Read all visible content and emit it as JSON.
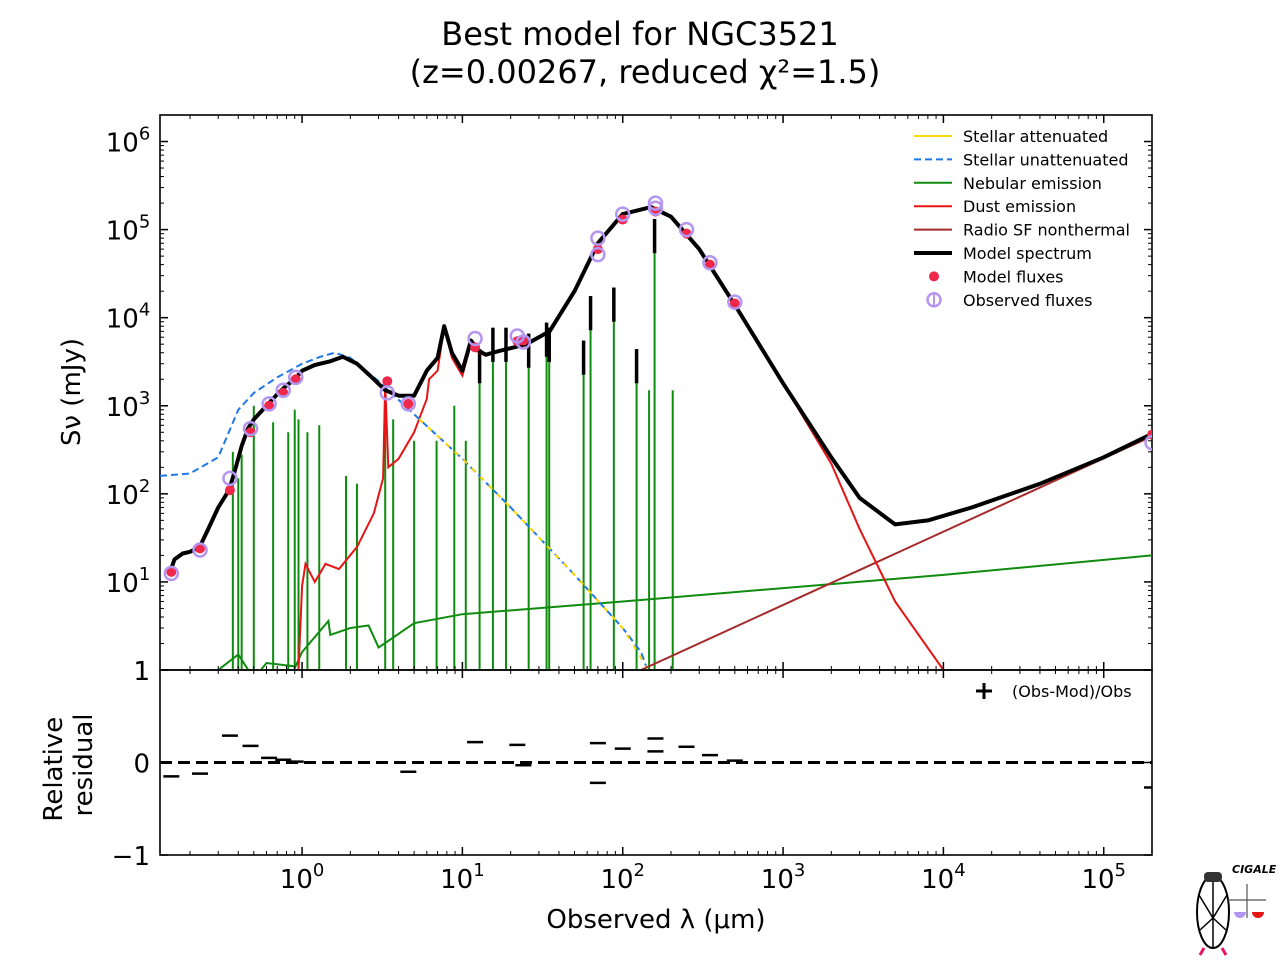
{
  "colors": {
    "stellar_attenuated": "#ffd700",
    "stellar_unattenuated": "#1e78e6",
    "nebular": "#0f8c0f",
    "dust": "#e61414",
    "radio": "#a52a2a",
    "model": "#000000",
    "model_fluxes": "#f0284b",
    "observed_fluxes": "#b496f0"
  },
  "logo": {
    "text": "CIGALE",
    "icon": "cigale-cicada-logo-icon"
  },
  "chart_data": [
    {
      "type": "line",
      "title": "Best model for NGC3521",
      "subtitle": "(z=0.00267, reduced χ²=1.5)",
      "xlabel": "Observed λ (μm)",
      "ylabel": "Sν (mJy)",
      "xscale": "log",
      "yscale": "log",
      "xlim": [
        0.13,
        200000
      ],
      "ylim": [
        1,
        2000000
      ],
      "yticks": [
        {
          "value": 1,
          "label": "1"
        },
        {
          "value": 10,
          "label": "10",
          "exp": "1"
        },
        {
          "value": 100,
          "label": "10",
          "exp": "2"
        },
        {
          "value": 1000,
          "label": "10",
          "exp": "3"
        },
        {
          "value": 10000,
          "label": "10",
          "exp": "4"
        },
        {
          "value": 100000,
          "label": "10",
          "exp": "5"
        },
        {
          "value": 1000000,
          "label": "10",
          "exp": "6"
        }
      ],
      "legend": {
        "position": "top-right",
        "entries": [
          {
            "label": "Stellar attenuated",
            "key": "stellar_attenuated",
            "style": "line"
          },
          {
            "label": "Stellar unattenuated",
            "key": "stellar_unattenuated",
            "style": "dashed"
          },
          {
            "label": "Nebular emission",
            "key": "nebular",
            "style": "line"
          },
          {
            "label": "Dust emission",
            "key": "dust",
            "style": "line"
          },
          {
            "label": "Radio SF nonthermal",
            "key": "radio",
            "style": "line"
          },
          {
            "label": "Model spectrum",
            "key": "model",
            "style": "thick"
          },
          {
            "label": "Model fluxes",
            "key": "model_fluxes",
            "style": "dot"
          },
          {
            "label": "Observed fluxes",
            "key": "observed_fluxes",
            "style": "circle"
          }
        ]
      },
      "series": [
        {
          "name": "Model spectrum",
          "key": "model",
          "points": [
            [
              0.15,
              13
            ],
            [
              0.16,
              18
            ],
            [
              0.18,
              21
            ],
            [
              0.2,
              22
            ],
            [
              0.23,
              25
            ],
            [
              0.26,
              40
            ],
            [
              0.3,
              70
            ],
            [
              0.35,
              110
            ],
            [
              0.38,
              180
            ],
            [
              0.42,
              350
            ],
            [
              0.46,
              550
            ],
            [
              0.5,
              700
            ],
            [
              0.6,
              1000
            ],
            [
              0.7,
              1350
            ],
            [
              0.8,
              1700
            ],
            [
              0.9,
              2000
            ],
            [
              1.0,
              2500
            ],
            [
              1.2,
              2900
            ],
            [
              1.5,
              3200
            ],
            [
              1.8,
              3600
            ],
            [
              2.2,
              3000
            ],
            [
              2.8,
              2000
            ],
            [
              3.3,
              1500
            ],
            [
              4.0,
              1300
            ],
            [
              5.0,
              1300
            ],
            [
              6.0,
              2500
            ],
            [
              7.0,
              3500
            ],
            [
              7.7,
              8000
            ],
            [
              8.6,
              4000
            ],
            [
              10,
              2500
            ],
            [
              11.3,
              5500
            ],
            [
              12.7,
              4200
            ],
            [
              14,
              3800
            ],
            [
              17,
              4200
            ],
            [
              20,
              4500
            ],
            [
              25,
              5000
            ],
            [
              35,
              7000
            ],
            [
              50,
              20000
            ],
            [
              70,
              70000
            ],
            [
              100,
              150000
            ],
            [
              150,
              180000
            ],
            [
              200,
              140000
            ],
            [
              300,
              60000
            ],
            [
              500,
              14000
            ],
            [
              1000,
              1800
            ],
            [
              2000,
              260
            ],
            [
              3000,
              90
            ],
            [
              5000,
              45
            ],
            [
              8000,
              50
            ],
            [
              15000,
              70
            ],
            [
              40000,
              130
            ],
            [
              100000,
              260
            ],
            [
              200000,
              480
            ]
          ]
        },
        {
          "name": "Stellar unattenuated",
          "key": "stellar_unattenuated",
          "points": [
            [
              0.13,
              160
            ],
            [
              0.2,
              170
            ],
            [
              0.3,
              260
            ],
            [
              0.4,
              900
            ],
            [
              0.5,
              1400
            ],
            [
              0.7,
              2100
            ],
            [
              1.0,
              3000
            ],
            [
              1.3,
              3600
            ],
            [
              1.6,
              4000
            ],
            [
              2.0,
              3500
            ],
            [
              3.0,
              1900
            ],
            [
              5.0,
              800
            ],
            [
              10,
              250
            ],
            [
              20,
              70
            ],
            [
              50,
              12
            ],
            [
              100,
              3
            ],
            [
              130,
              1.6
            ],
            [
              140,
              1.1
            ]
          ]
        },
        {
          "name": "Stellar attenuated",
          "key": "stellar_attenuated",
          "points": [
            [
              5,
              800
            ],
            [
              10,
              250
            ],
            [
              20,
              70
            ],
            [
              50,
              12
            ],
            [
              100,
              3
            ],
            [
              140,
              1.1
            ]
          ]
        },
        {
          "name": "Dust emission",
          "key": "dust",
          "points": [
            [
              0.95,
              1
            ],
            [
              1.0,
              9
            ],
            [
              1.05,
              16
            ],
            [
              1.2,
              10
            ],
            [
              1.4,
              16
            ],
            [
              1.7,
              14
            ],
            [
              2.2,
              25
            ],
            [
              2.8,
              60
            ],
            [
              3.2,
              150
            ],
            [
              3.3,
              1800
            ],
            [
              3.45,
              200
            ],
            [
              4.0,
              250
            ],
            [
              5.0,
              500
            ],
            [
              6.0,
              1200
            ],
            [
              6.2,
              2000
            ],
            [
              7.0,
              2500
            ],
            [
              7.7,
              8000
            ],
            [
              8.6,
              3500
            ],
            [
              10,
              2200
            ],
            [
              11.3,
              5000
            ],
            [
              12.7,
              4000
            ],
            [
              14,
              3700
            ],
            [
              17,
              4200
            ],
            [
              20,
              4500
            ],
            [
              25,
              5000
            ],
            [
              35,
              7000
            ],
            [
              50,
              20000
            ],
            [
              70,
              70000
            ],
            [
              100,
              150000
            ],
            [
              150,
              180000
            ],
            [
              200,
              140000
            ],
            [
              300,
              60000
            ],
            [
              500,
              14000
            ],
            [
              1000,
              1800
            ],
            [
              2000,
              220
            ],
            [
              3000,
              40
            ],
            [
              5000,
              6
            ],
            [
              10000,
              1
            ]
          ]
        },
        {
          "name": "Radio SF nonthermal",
          "key": "radio",
          "points": [
            [
              130,
              1
            ],
            [
              200000,
              450
            ]
          ]
        },
        {
          "name": "Nebular emission",
          "key": "nebular",
          "points": [
            [
              0.3,
              1
            ],
            [
              0.4,
              1.5
            ],
            [
              0.5,
              0.8
            ],
            [
              0.6,
              1.2
            ],
            [
              0.91,
              1.1
            ],
            [
              1.0,
              1.6
            ],
            [
              1.46,
              3.6
            ],
            [
              1.5,
              2.5
            ],
            [
              2.0,
              3.0
            ],
            [
              2.6,
              3.2
            ],
            [
              3.0,
              1.8
            ],
            [
              5.0,
              3.4
            ],
            [
              10,
              4.3
            ],
            [
              100,
              6
            ],
            [
              1000,
              8.5
            ],
            [
              10000,
              12
            ],
            [
              200000,
              20
            ]
          ]
        }
      ],
      "nebular_lines": [
        [
          0.37,
          300
        ],
        [
          0.4,
          150
        ],
        [
          0.42,
          280
        ],
        [
          0.5,
          1000
        ],
        [
          0.66,
          650
        ],
        [
          0.82,
          500
        ],
        [
          0.9,
          900
        ],
        [
          0.95,
          700
        ],
        [
          1.08,
          500
        ],
        [
          1.28,
          600
        ],
        [
          1.88,
          160
        ],
        [
          2.2,
          130
        ],
        [
          3.3,
          1000
        ],
        [
          3.7,
          700
        ],
        [
          5.0,
          400
        ],
        [
          6.9,
          400
        ],
        [
          8.9,
          1000
        ],
        [
          10.5,
          400
        ],
        [
          12.8,
          2000
        ],
        [
          15.5,
          3500
        ],
        [
          18.7,
          3500
        ],
        [
          25.9,
          3000
        ],
        [
          33.5,
          4000
        ],
        [
          34.8,
          3500
        ],
        [
          57,
          2500
        ],
        [
          63,
          8000
        ],
        [
          88,
          10000
        ],
        [
          122,
          2000
        ],
        [
          146,
          1500
        ],
        [
          158,
          60000
        ],
        [
          205,
          1500
        ]
      ],
      "model_fluxes": [
        [
          0.153,
          13
        ],
        [
          0.231,
          24
        ],
        [
          0.355,
          110
        ],
        [
          0.477,
          500
        ],
        [
          0.623,
          1000
        ],
        [
          0.763,
          1400
        ],
        [
          0.913,
          2000
        ],
        [
          3.4,
          1900
        ],
        [
          4.6,
          1050
        ],
        [
          12,
          4600
        ],
        [
          22,
          5400
        ],
        [
          24,
          5500
        ],
        [
          70,
          60000
        ],
        [
          100,
          130000
        ],
        [
          160,
          160000
        ],
        [
          250,
          90000
        ],
        [
          350,
          40000
        ],
        [
          500,
          14500
        ],
        [
          200000,
          470
        ]
      ],
      "observed_fluxes": [
        [
          0.153,
          12.5
        ],
        [
          0.231,
          23
        ],
        [
          0.355,
          150
        ],
        [
          0.477,
          550
        ],
        [
          0.623,
          1050
        ],
        [
          0.763,
          1500
        ],
        [
          0.913,
          2100
        ],
        [
          3.4,
          1400
        ],
        [
          4.6,
          1050
        ],
        [
          12,
          5800
        ],
        [
          22,
          6200
        ],
        [
          24,
          5300
        ],
        [
          70,
          80000
        ],
        [
          70,
          52000
        ],
        [
          100,
          150000
        ],
        [
          160,
          200000
        ],
        [
          160,
          175000
        ],
        [
          250,
          100000
        ],
        [
          350,
          42000
        ],
        [
          500,
          15000
        ],
        [
          200000,
          380
        ]
      ]
    },
    {
      "type": "scatter",
      "xlabel": "Observed λ (μm)",
      "ylabel": "Relative residual",
      "xscale": "log",
      "xlim": [
        0.13,
        200000
      ],
      "ylim": [
        -1,
        1
      ],
      "yticks": [
        {
          "value": 1,
          "label": "1"
        },
        {
          "value": 0,
          "label": "0"
        },
        {
          "value": -1,
          "label": "−1"
        }
      ],
      "xticks": [
        {
          "value": 1,
          "label": "10",
          "exp": "0"
        },
        {
          "value": 10,
          "label": "10",
          "exp": "1"
        },
        {
          "value": 100,
          "label": "10",
          "exp": "2"
        },
        {
          "value": 1000,
          "label": "10",
          "exp": "3"
        },
        {
          "value": 10000,
          "label": "10",
          "exp": "4"
        },
        {
          "value": 100000,
          "label": "10",
          "exp": "5"
        }
      ],
      "legend": {
        "position": "top-right",
        "entries": [
          {
            "label": "(Obs-Mod)/Obs",
            "marker": "+"
          }
        ]
      },
      "reference_line": 0,
      "points": [
        [
          0.153,
          -0.15
        ],
        [
          0.231,
          -0.12
        ],
        [
          0.355,
          0.29
        ],
        [
          0.477,
          0.18
        ],
        [
          0.623,
          0.05
        ],
        [
          0.763,
          0.03
        ],
        [
          0.913,
          0.01
        ],
        [
          4.6,
          -0.1
        ],
        [
          12,
          0.22
        ],
        [
          22,
          0.19
        ],
        [
          24,
          -0.03
        ],
        [
          70,
          0.21
        ],
        [
          70,
          -0.22
        ],
        [
          100,
          0.15
        ],
        [
          160,
          0.26
        ],
        [
          160,
          0.12
        ],
        [
          250,
          0.17
        ],
        [
          350,
          0.08
        ],
        [
          500,
          0.02
        ],
        [
          200000,
          -0.27
        ]
      ]
    }
  ]
}
